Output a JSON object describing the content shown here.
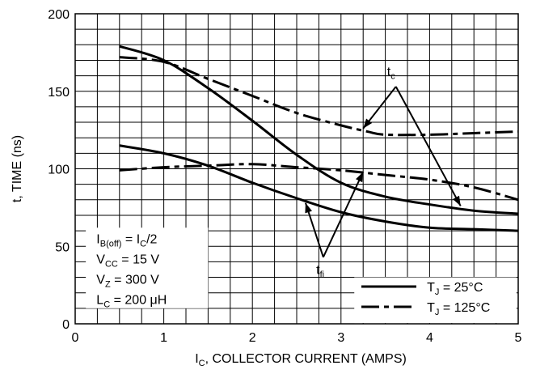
{
  "chart_data": {
    "type": "line",
    "xlabel": {
      "main": "I",
      "sub": "C",
      "rest": ", COLLECTOR CURRENT (AMPS)"
    },
    "ylabel": "t, TIME (ns)",
    "xlim": [
      0,
      5
    ],
    "ylim": [
      0,
      200
    ],
    "x_ticks": [
      "0",
      "1",
      "2",
      "3",
      "4",
      "5"
    ],
    "y_ticks": [
      "0",
      "50",
      "100",
      "150",
      "200"
    ],
    "grid": true,
    "legend_position": "bottom-right",
    "series": [
      {
        "name": "tc @ TJ = 25°C",
        "style": "solid",
        "x": [
          0.5,
          1.0,
          1.5,
          2.0,
          2.5,
          3.0,
          3.5,
          4.0,
          4.5,
          5.0
        ],
        "y": [
          179,
          170,
          152,
          131,
          109,
          91,
          82,
          77,
          73,
          71
        ]
      },
      {
        "name": "tc @ TJ = 125°C",
        "style": "dashed",
        "x": [
          0.5,
          1.0,
          1.5,
          2.0,
          2.5,
          3.0,
          3.3,
          3.5,
          4.0,
          4.5,
          5.0
        ],
        "y": [
          172,
          169,
          158,
          147,
          136,
          128,
          124,
          122,
          122,
          123,
          124
        ]
      },
      {
        "name": "tfi @ TJ = 25°C",
        "style": "solid",
        "x": [
          0.5,
          1.0,
          1.5,
          2.0,
          2.5,
          3.0,
          3.5,
          4.0,
          4.5,
          5.0
        ],
        "y": [
          115,
          110,
          102,
          91,
          81,
          72,
          66,
          62,
          61,
          60
        ]
      },
      {
        "name": "tfi @ TJ = 125°C",
        "style": "dashed",
        "x": [
          0.5,
          1.0,
          1.5,
          2.0,
          2.5,
          3.0,
          3.5,
          4.0,
          4.5,
          5.0
        ],
        "y": [
          99,
          101,
          102,
          103,
          101,
          99,
          96,
          93,
          88,
          80
        ]
      }
    ],
    "curve_labels": {
      "tc": {
        "main": "t",
        "sub": "c"
      },
      "tfi": {
        "main": "t",
        "sub": "fi"
      }
    },
    "conditions": [
      {
        "parts": [
          [
            "I",
            ""
          ],
          [
            "B(off)",
            "sub"
          ],
          [
            " = I",
            ""
          ],
          [
            "C",
            "sub"
          ],
          [
            "/2",
            ""
          ]
        ]
      },
      {
        "parts": [
          [
            "V",
            ""
          ],
          [
            "CC",
            "sub"
          ],
          [
            " = 15 V",
            ""
          ]
        ]
      },
      {
        "parts": [
          [
            "V",
            ""
          ],
          [
            "Z",
            "sub"
          ],
          [
            " = 300 V",
            ""
          ]
        ]
      },
      {
        "parts": [
          [
            "L",
            ""
          ],
          [
            "C",
            "sub"
          ],
          [
            " = 200 μH",
            ""
          ]
        ]
      }
    ],
    "legend": [
      {
        "style": "solid",
        "parts": [
          [
            "T",
            ""
          ],
          [
            "J",
            "sub"
          ],
          [
            " = 25°C",
            ""
          ]
        ]
      },
      {
        "style": "dashed",
        "parts": [
          [
            "T",
            ""
          ],
          [
            "J",
            "sub"
          ],
          [
            " = 125°C",
            ""
          ]
        ]
      }
    ],
    "arrows": {
      "tc_target_points": [
        [
          3.25,
          126
        ],
        [
          4.35,
          76
        ]
      ],
      "tfi_target_points": [
        [
          2.6,
          78
        ],
        [
          3.25,
          98
        ]
      ]
    }
  }
}
